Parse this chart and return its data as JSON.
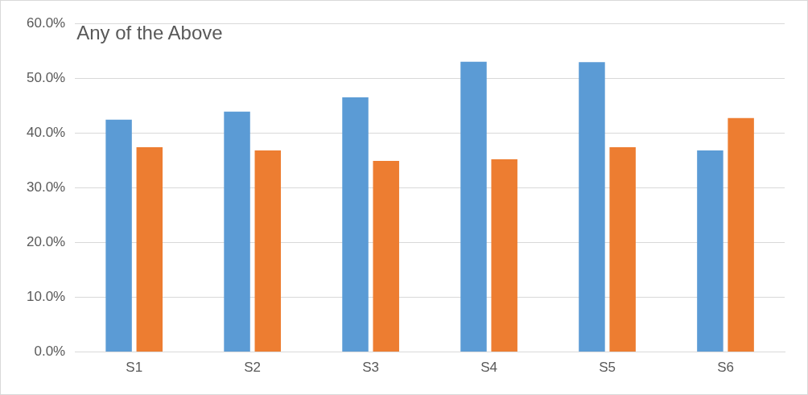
{
  "chart_data": {
    "type": "bar",
    "title": "Any of the Above",
    "categories": [
      "S1",
      "S2",
      "S3",
      "S4",
      "S5",
      "S6"
    ],
    "series": [
      {
        "color": "#5b9bd5",
        "values": [
          42.4,
          43.9,
          46.5,
          53.0,
          52.9,
          36.8
        ]
      },
      {
        "color": "#ed7d31",
        "values": [
          37.4,
          36.8,
          34.9,
          35.2,
          37.4,
          42.7
        ]
      }
    ],
    "ylim": [
      0,
      60
    ],
    "yticks": [
      {
        "value": 0,
        "label": "0.0%"
      },
      {
        "value": 10,
        "label": "10.0%"
      },
      {
        "value": 20,
        "label": "20.0%"
      },
      {
        "value": 30,
        "label": "30.0%"
      },
      {
        "value": 40,
        "label": "40.0%"
      },
      {
        "value": 50,
        "label": "50.0%"
      },
      {
        "value": 60,
        "label": "60.0%"
      }
    ],
    "grid": "y",
    "legend": false
  }
}
